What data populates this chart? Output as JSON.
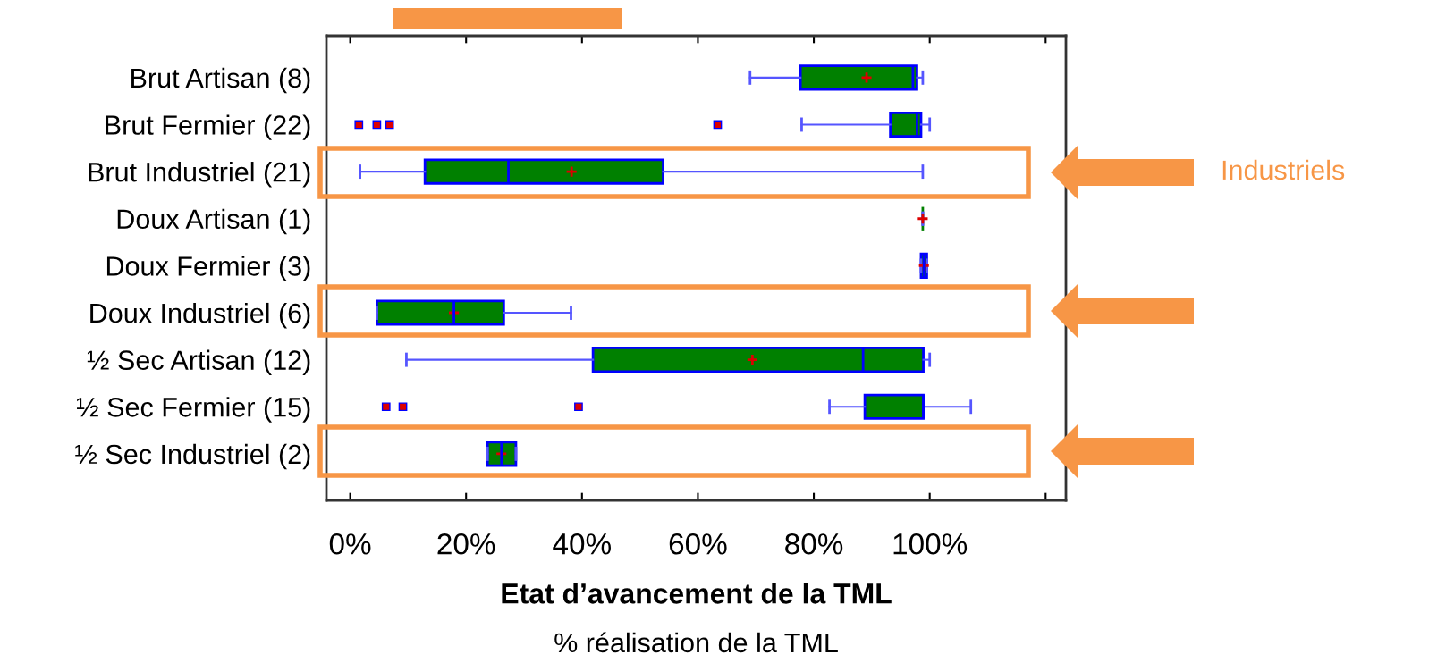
{
  "chart_data": {
    "type": "box",
    "orientation": "horizontal",
    "categories": [
      "Brut Artisan (8)",
      "Brut Fermier (22)",
      "Brut Industriel (21)",
      "Doux Artisan (1)",
      "Doux Fermier (3)",
      "Doux Industriel (6)",
      "½ Sec Artisan (12)",
      "½ Sec Fermier (15)",
      "½ Sec Industriel (2)"
    ],
    "boxes": [
      {
        "low": 69,
        "q1": 77.7,
        "median": 97.1,
        "q3": 97.8,
        "high": 98.8,
        "mean": 89.1
      },
      {
        "low": 77.9,
        "q1": 93.2,
        "median": 97.8,
        "q3": 98.5,
        "high": 100,
        "outliers": [
          1.5,
          4.6,
          6.8,
          63.4
        ]
      },
      {
        "low": 1.7,
        "q1": 12.9,
        "median": 27.3,
        "q3": 54.0,
        "high": 98.8,
        "mean": 38.2
      },
      {
        "low": 98.8,
        "q1": 98.8,
        "median": 98.8,
        "q3": 98.8,
        "high": 98.8,
        "mean": 98.8
      },
      {
        "low": 98.5,
        "q1": 98.5,
        "median": 99,
        "q3": 99.5,
        "high": 99.5,
        "mean": 99
      },
      {
        "low": 4.6,
        "q1": 4.6,
        "median": 17.9,
        "q3": 26.5,
        "high": 38.1,
        "mean": 17.9
      },
      {
        "low": 9.7,
        "q1": 41.9,
        "median": 88.5,
        "q3": 98.9,
        "high": 100,
        "mean": 69.4
      },
      {
        "low": 82.7,
        "q1": 88.8,
        "median": 98.9,
        "q3": 98.9,
        "high": 107.1,
        "outliers": [
          6.2,
          9.1,
          39.4
        ]
      },
      {
        "low": 23.7,
        "q1": 23.7,
        "median": 26.1,
        "q3": 28.6,
        "high": 28.6,
        "mean": 26.1
      }
    ],
    "color": "#008000",
    "xlim": [
      -4.1,
      123.5
    ],
    "xticks": [
      {
        "value": 0,
        "label": "0%"
      },
      {
        "value": 20,
        "label": "20%"
      },
      {
        "value": 40,
        "label": "40%"
      },
      {
        "value": 60,
        "label": "60%"
      },
      {
        "value": 80,
        "label": "80%"
      },
      {
        "value": 100,
        "label": "100%"
      },
      {
        "value": 120,
        "label": null
      }
    ],
    "xlabel": "Etat d’avancement de la TML",
    "annotations": [
      "% réalisation de la TML",
      "Industriels"
    ],
    "grid": false
  }
}
